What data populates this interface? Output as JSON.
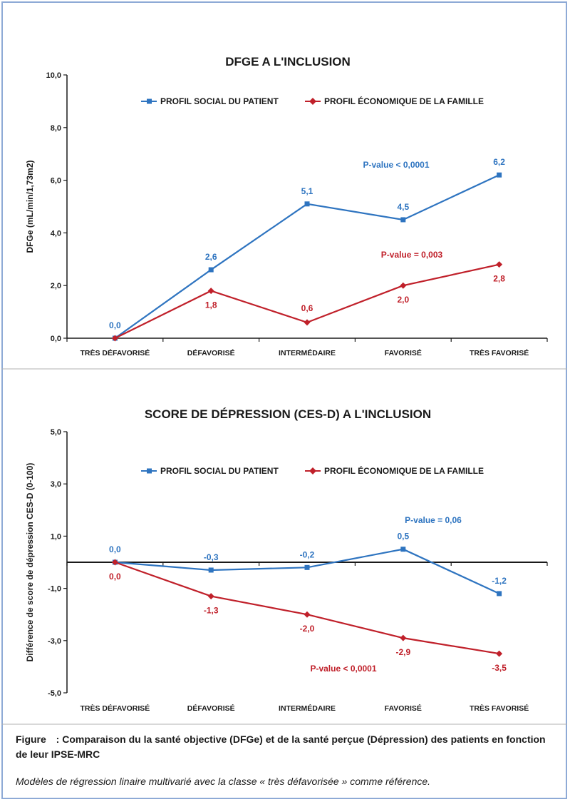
{
  "chart_data": [
    {
      "type": "line",
      "title": "DFGE A L'INCLUSION",
      "ylabel": "DFGe (mL/min/1,73m2)",
      "xlabel": "",
      "categories": [
        "TRÈS DÉFAVORISÉ",
        "DÉFAVORISÉ",
        "INTERMÉDAIRE",
        "FAVORISÉ",
        "TRÈS FAVORISÉ"
      ],
      "ylim": [
        0,
        10
      ],
      "yticks": [
        "0,0",
        "2,0",
        "4,0",
        "6,0",
        "8,0",
        "10,0"
      ],
      "yticks_values": [
        0,
        2,
        4,
        6,
        8,
        10
      ],
      "legend_position": "top",
      "grid": false,
      "series": [
        {
          "name": "PROFIL SOCIAL DU PATIENT",
          "color": "#2e74c0",
          "marker": "square",
          "values": [
            0.0,
            2.6,
            5.1,
            4.5,
            6.2
          ],
          "labels": [
            "0,0",
            "2,6",
            "5,1",
            "4,5",
            "6,2"
          ]
        },
        {
          "name": "PROFIL ÉCONOMIQUE DE LA FAMILLE",
          "color": "#c0202a",
          "marker": "diamond",
          "values": [
            0.0,
            1.8,
            0.6,
            2.0,
            2.8
          ],
          "labels": [
            "",
            "1,8",
            "0,6",
            "2,0",
            "2,8"
          ]
        }
      ],
      "annotations": [
        {
          "text": "P-value < 0,0001",
          "color": "#2e74c0"
        },
        {
          "text": "P-value = 0,003",
          "color": "#c0202a"
        }
      ]
    },
    {
      "type": "line",
      "title": "SCORE DE DÉPRESSION (CES-D) A L'INCLUSION",
      "ylabel": "Différence de score de dépression CES-D (0-100)",
      "xlabel": "",
      "categories": [
        "TRÈS DÉFAVORISÉ",
        "DÉFAVORISÉ",
        "INTERMÉDAIRE",
        "FAVORISÉ",
        "TRÈS FAVORISÉ"
      ],
      "ylim": [
        -5,
        5
      ],
      "yticks": [
        "-5,0",
        "-3,0",
        "-1,0",
        "1,0",
        "3,0",
        "5,0"
      ],
      "yticks_values": [
        -5,
        -3,
        -1,
        1,
        3,
        5
      ],
      "legend_position": "top",
      "grid": false,
      "series": [
        {
          "name": "PROFIL SOCIAL DU PATIENT",
          "color": "#2e74c0",
          "marker": "square",
          "values": [
            0.0,
            -0.3,
            -0.2,
            0.5,
            -1.2
          ],
          "labels": [
            "0,0",
            "-0,3",
            "-0,2",
            "0,5",
            "-1,2"
          ]
        },
        {
          "name": "PROFIL ÉCONOMIQUE DE LA FAMILLE",
          "color": "#c0202a",
          "marker": "diamond",
          "values": [
            0.0,
            -1.3,
            -2.0,
            -2.9,
            -3.5
          ],
          "labels": [
            "0,0",
            "-1,3",
            "-2,0",
            "-2,9",
            "-3,5"
          ]
        }
      ],
      "annotations": [
        {
          "text": "P-value = 0,06",
          "color": "#2e74c0"
        },
        {
          "text": "P-value < 0,0001",
          "color": "#c0202a"
        }
      ]
    }
  ],
  "caption": {
    "label": "Figure",
    "separator": ":",
    "text": "Comparaison du la santé objective (DFGe) et de la santé perçue (Dépression) des patients en fonction de leur IPSE-MRC",
    "subtext": "Modèles de régression linaire multivarié avec la classe « très défavorisée » comme référence."
  }
}
